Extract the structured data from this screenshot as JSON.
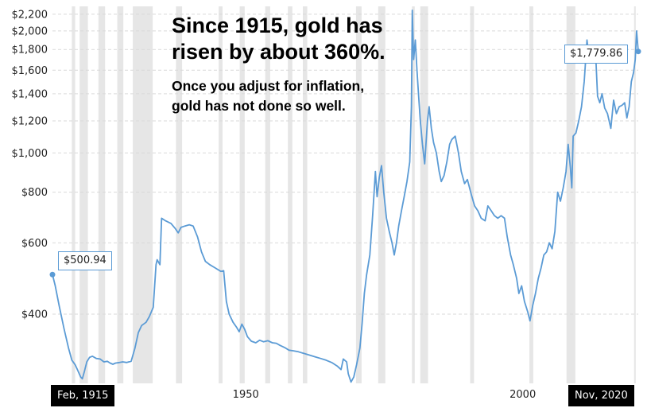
{
  "headline": {
    "line1": "Since 1915, gold has",
    "line2": "risen by about 360%."
  },
  "subline": {
    "line1": "Once you adjust for inflation,",
    "line2": "gold has not done so well."
  },
  "callouts": {
    "start": "$500.94",
    "end": "$1,779.86"
  },
  "x_end_labels": {
    "start": "Feb, 1915",
    "end": "Nov, 2020"
  },
  "colors": {
    "line": "#5b9bd5",
    "recession": "#e6e6e6",
    "grid": "#d9d9d9"
  },
  "chart_data": {
    "type": "line",
    "title": "",
    "xlabel": "",
    "ylabel": "",
    "xlim": [
      1915.1,
      2020.85
    ],
    "ylim": [
      270,
      2300
    ],
    "y_scale": "log",
    "grid": true,
    "y_ticks": [
      {
        "value": 400,
        "label": "$400"
      },
      {
        "value": 600,
        "label": "$600"
      },
      {
        "value": 800,
        "label": "$800"
      },
      {
        "value": 1000,
        "label": "$1,000"
      },
      {
        "value": 1200,
        "label": "$1,200"
      },
      {
        "value": 1400,
        "label": "$1,400"
      },
      {
        "value": 1600,
        "label": "$1,600"
      },
      {
        "value": 1800,
        "label": "$1,800"
      },
      {
        "value": 2000,
        "label": "$2,000"
      },
      {
        "value": 2200,
        "label": "$2,200"
      }
    ],
    "x_ticks": [
      {
        "value": 1950,
        "label": "1950"
      },
      {
        "value": 2000,
        "label": "2000"
      }
    ],
    "recessions": [
      [
        1918.6,
        1919.2
      ],
      [
        1920.0,
        1921.5
      ],
      [
        1923.4,
        1924.6
      ],
      [
        1926.8,
        1927.9
      ],
      [
        1929.6,
        1933.2
      ],
      [
        1937.4,
        1938.5
      ],
      [
        1945.1,
        1945.8
      ],
      [
        1948.9,
        1949.8
      ],
      [
        1953.5,
        1954.4
      ],
      [
        1957.6,
        1958.4
      ],
      [
        1960.3,
        1961.1
      ],
      [
        1969.9,
        1970.9
      ],
      [
        1973.9,
        1975.2
      ],
      [
        1980.0,
        1980.5
      ],
      [
        1981.5,
        1982.9
      ],
      [
        1990.5,
        1991.2
      ],
      [
        2001.2,
        2001.9
      ],
      [
        2007.9,
        2009.5
      ],
      [
        2020.1,
        2020.4
      ]
    ],
    "series": [
      {
        "values": [
          [
            1915.1,
            501
          ],
          [
            1915.6,
            470
          ],
          [
            1916.3,
            420
          ],
          [
            1917.2,
            368
          ],
          [
            1918.0,
            330
          ],
          [
            1918.6,
            308
          ],
          [
            1919.2,
            300
          ],
          [
            1919.6,
            292
          ],
          [
            1920.2,
            280
          ],
          [
            1920.5,
            277
          ],
          [
            1920.9,
            290
          ],
          [
            1921.3,
            305
          ],
          [
            1921.8,
            313
          ],
          [
            1922.3,
            315
          ],
          [
            1923.0,
            311
          ],
          [
            1923.7,
            310
          ],
          [
            1924.4,
            305
          ],
          [
            1925.0,
            306
          ],
          [
            1925.5,
            303
          ],
          [
            1926.0,
            301
          ],
          [
            1926.5,
            303
          ],
          [
            1927.2,
            304
          ],
          [
            1927.8,
            305
          ],
          [
            1928.5,
            304
          ],
          [
            1929.3,
            306
          ],
          [
            1930.0,
            330
          ],
          [
            1930.6,
            360
          ],
          [
            1931.2,
            375
          ],
          [
            1932.0,
            382
          ],
          [
            1932.6,
            395
          ],
          [
            1933.3,
            416
          ],
          [
            1933.8,
            530
          ],
          [
            1934.0,
            545
          ],
          [
            1934.5,
            530
          ],
          [
            1934.8,
            690
          ],
          [
            1935.5,
            680
          ],
          [
            1936.5,
            670
          ],
          [
            1937.3,
            650
          ],
          [
            1937.8,
            635
          ],
          [
            1938.3,
            655
          ],
          [
            1939.0,
            660
          ],
          [
            1939.8,
            665
          ],
          [
            1940.5,
            660
          ],
          [
            1941.3,
            620
          ],
          [
            1942.0,
            570
          ],
          [
            1942.7,
            540
          ],
          [
            1943.5,
            530
          ],
          [
            1944.3,
            522
          ],
          [
            1945.0,
            515
          ],
          [
            1945.5,
            510
          ],
          [
            1946.0,
            512
          ],
          [
            1946.5,
            430
          ],
          [
            1947.0,
            400
          ],
          [
            1947.7,
            382
          ],
          [
            1948.3,
            372
          ],
          [
            1948.8,
            362
          ],
          [
            1949.3,
            378
          ],
          [
            1949.8,
            367
          ],
          [
            1950.3,
            352
          ],
          [
            1951.0,
            343
          ],
          [
            1951.8,
            340
          ],
          [
            1952.5,
            345
          ],
          [
            1953.2,
            342
          ],
          [
            1954.0,
            344
          ],
          [
            1954.8,
            340
          ],
          [
            1955.5,
            339
          ],
          [
            1956.2,
            335
          ],
          [
            1957.0,
            331
          ],
          [
            1957.8,
            326
          ],
          [
            1958.5,
            325
          ],
          [
            1959.5,
            323
          ],
          [
            1960.5,
            320
          ],
          [
            1961.5,
            317
          ],
          [
            1962.5,
            314
          ],
          [
            1963.5,
            311
          ],
          [
            1964.5,
            308
          ],
          [
            1965.5,
            304
          ],
          [
            1966.5,
            298
          ],
          [
            1967.2,
            292
          ],
          [
            1967.6,
            310
          ],
          [
            1968.2,
            305
          ],
          [
            1968.5,
            285
          ],
          [
            1969.0,
            272
          ],
          [
            1969.5,
            280
          ],
          [
            1970.0,
            300
          ],
          [
            1970.6,
            330
          ],
          [
            1971.0,
            380
          ],
          [
            1971.4,
            450
          ],
          [
            1971.8,
            500
          ],
          [
            1972.4,
            560
          ],
          [
            1972.9,
            700
          ],
          [
            1973.4,
            900
          ],
          [
            1973.7,
            780
          ],
          [
            1974.1,
            870
          ],
          [
            1974.5,
            930
          ],
          [
            1974.9,
            800
          ],
          [
            1975.4,
            690
          ],
          [
            1975.9,
            640
          ],
          [
            1976.4,
            600
          ],
          [
            1976.8,
            560
          ],
          [
            1977.2,
            600
          ],
          [
            1977.6,
            660
          ],
          [
            1978.1,
            720
          ],
          [
            1978.6,
            780
          ],
          [
            1979.1,
            850
          ],
          [
            1979.6,
            950
          ],
          [
            1979.9,
            1300
          ],
          [
            1980.05,
            2250
          ],
          [
            1980.3,
            1700
          ],
          [
            1980.6,
            1900
          ],
          [
            1980.9,
            1600
          ],
          [
            1981.2,
            1380
          ],
          [
            1981.5,
            1200
          ],
          [
            1981.9,
            1050
          ],
          [
            1982.3,
            940
          ],
          [
            1982.8,
            1200
          ],
          [
            1983.1,
            1300
          ],
          [
            1983.5,
            1150
          ],
          [
            1983.9,
            1060
          ],
          [
            1984.4,
            1000
          ],
          [
            1984.9,
            900
          ],
          [
            1985.3,
            850
          ],
          [
            1985.8,
            880
          ],
          [
            1986.3,
            950
          ],
          [
            1986.8,
            1050
          ],
          [
            1987.2,
            1080
          ],
          [
            1987.8,
            1100
          ],
          [
            1988.4,
            1000
          ],
          [
            1988.9,
            900
          ],
          [
            1989.5,
            840
          ],
          [
            1990.0,
            860
          ],
          [
            1990.7,
            790
          ],
          [
            1991.3,
            740
          ],
          [
            1991.9,
            720
          ],
          [
            1992.5,
            690
          ],
          [
            1993.2,
            680
          ],
          [
            1993.7,
            740
          ],
          [
            1994.3,
            720
          ],
          [
            1994.9,
            700
          ],
          [
            1995.5,
            690
          ],
          [
            1996.1,
            700
          ],
          [
            1996.7,
            690
          ],
          [
            1997.2,
            620
          ],
          [
            1997.8,
            560
          ],
          [
            1998.3,
            530
          ],
          [
            1998.9,
            490
          ],
          [
            1999.3,
            450
          ],
          [
            1999.8,
            470
          ],
          [
            2000.3,
            430
          ],
          [
            2000.9,
            405
          ],
          [
            2001.3,
            385
          ],
          [
            2001.8,
            420
          ],
          [
            2002.3,
            450
          ],
          [
            2002.8,
            490
          ],
          [
            2003.3,
            520
          ],
          [
            2003.8,
            560
          ],
          [
            2004.3,
            570
          ],
          [
            2004.8,
            600
          ],
          [
            2005.3,
            580
          ],
          [
            2005.8,
            640
          ],
          [
            2006.3,
            800
          ],
          [
            2006.8,
            760
          ],
          [
            2007.3,
            820
          ],
          [
            2007.8,
            900
          ],
          [
            2008.2,
            1050
          ],
          [
            2008.6,
            920
          ],
          [
            2008.85,
            820
          ],
          [
            2009.1,
            1100
          ],
          [
            2009.6,
            1120
          ],
          [
            2010.1,
            1200
          ],
          [
            2010.6,
            1300
          ],
          [
            2011.1,
            1500
          ],
          [
            2011.6,
            1900
          ],
          [
            2011.9,
            1750
          ],
          [
            2012.3,
            1780
          ],
          [
            2012.8,
            1820
          ],
          [
            2013.2,
            1700
          ],
          [
            2013.5,
            1380
          ],
          [
            2013.9,
            1330
          ],
          [
            2014.3,
            1400
          ],
          [
            2014.8,
            1290
          ],
          [
            2015.3,
            1250
          ],
          [
            2015.9,
            1150
          ],
          [
            2016.4,
            1350
          ],
          [
            2016.9,
            1250
          ],
          [
            2017.4,
            1300
          ],
          [
            2017.9,
            1310
          ],
          [
            2018.4,
            1330
          ],
          [
            2018.8,
            1220
          ],
          [
            2019.2,
            1300
          ],
          [
            2019.6,
            1500
          ],
          [
            2020.0,
            1580
          ],
          [
            2020.3,
            1700
          ],
          [
            2020.55,
            2000
          ],
          [
            2020.85,
            1780
          ]
        ]
      }
    ]
  }
}
